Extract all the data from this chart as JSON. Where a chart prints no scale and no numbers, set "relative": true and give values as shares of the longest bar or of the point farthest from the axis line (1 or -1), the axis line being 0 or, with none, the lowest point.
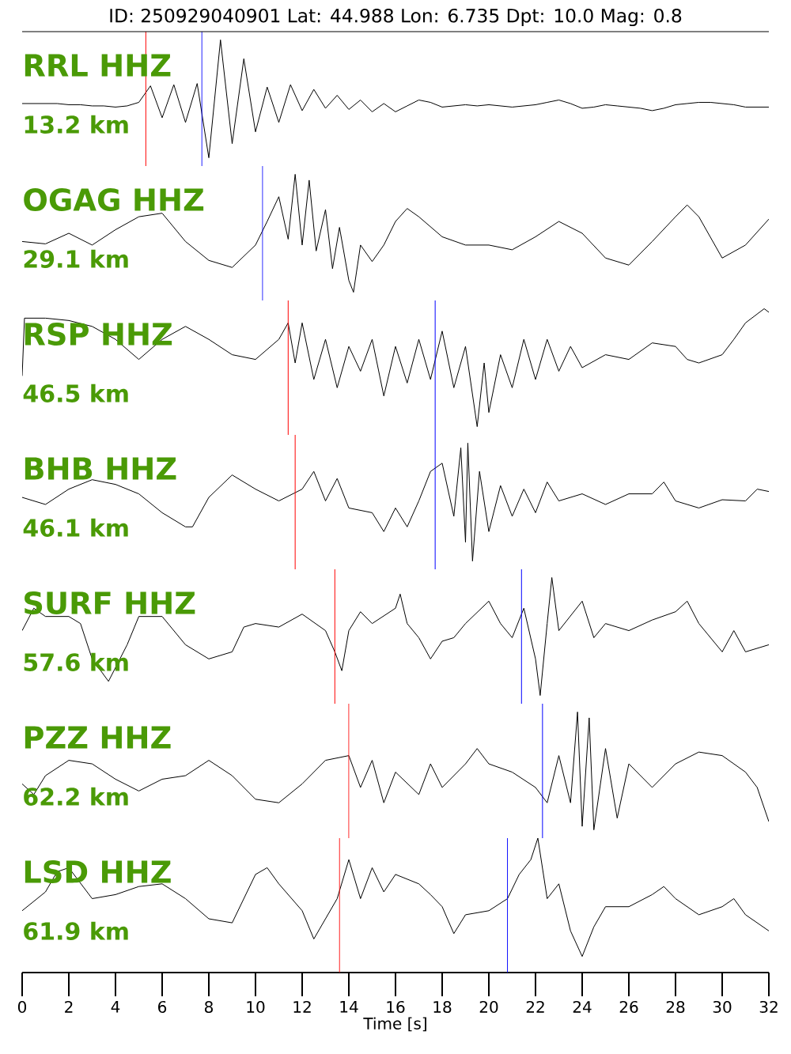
{
  "chart_data": [
    {
      "type": "line",
      "title": "RRL HHZ",
      "subtitle": "13.2 km",
      "relative": true,
      "color": "#000000",
      "xlim": [
        0,
        32
      ],
      "tick_labels": false,
      "annotations": [
        "ID: 250929040901 Lat:  44.988 Lon:   6.735 Dpt:    10.0 Mag:   0.8"
      ],
      "x": [
        0,
        0.5,
        1,
        1.5,
        2,
        2.5,
        3,
        3.5,
        4,
        4.5,
        5,
        5.5,
        6,
        6.5,
        7,
        7.5,
        8,
        8.5,
        9,
        9.5,
        10,
        10.5,
        11,
        11.5,
        12,
        12.5,
        13,
        13.5,
        14,
        14.5,
        15,
        15.5,
        16,
        16.5,
        17,
        17.5,
        18,
        18.5,
        19,
        19.5,
        20,
        20.5,
        21,
        21.5,
        22,
        22.5,
        23,
        23.5,
        24,
        24.5,
        25,
        25.5,
        26,
        26.5,
        27,
        27.5,
        28,
        28.5,
        29,
        29.5,
        30,
        30.5,
        31,
        31.5,
        32
      ],
      "values": [
        0.46,
        0.46,
        0.46,
        0.46,
        0.45,
        0.45,
        0.44,
        0.44,
        0.43,
        0.44,
        0.47,
        0.61,
        0.34,
        0.62,
        0.3,
        0.63,
        0.0,
        1.0,
        0.12,
        0.84,
        0.22,
        0.6,
        0.3,
        0.62,
        0.4,
        0.58,
        0.42,
        0.53,
        0.41,
        0.49,
        0.39,
        0.46,
        0.39,
        0.44,
        0.49,
        0.47,
        0.43,
        0.44,
        0.45,
        0.44,
        0.45,
        0.44,
        0.43,
        0.44,
        0.45,
        0.47,
        0.49,
        0.46,
        0.42,
        0.43,
        0.45,
        0.44,
        0.43,
        0.42,
        0.4,
        0.42,
        0.45,
        0.46,
        0.47,
        0.47,
        0.46,
        0.45,
        0.43,
        0.43,
        0.43
      ],
      "ref_lines": [
        {
          "axis": "x",
          "value": 5.3,
          "color": "#ff0000"
        },
        {
          "axis": "x",
          "value": 7.7,
          "color": "#0000ff"
        }
      ]
    },
    {
      "type": "line",
      "title": "OGAG HHZ",
      "subtitle": "29.1 km",
      "relative": true,
      "color": "#000000",
      "xlim": [
        0,
        32
      ],
      "tick_labels": false,
      "x": [
        0,
        1,
        2,
        3,
        4,
        5,
        6,
        7,
        8,
        9,
        10,
        10.5,
        11,
        11.4,
        11.7,
        12,
        12.3,
        12.6,
        13,
        13.3,
        13.6,
        14,
        14.2,
        14.5,
        15,
        15.5,
        16,
        16.5,
        17,
        18,
        19,
        20,
        21,
        22,
        23,
        24,
        25,
        26,
        27,
        28,
        28.5,
        29,
        30,
        31,
        32
      ],
      "values": [
        0.43,
        0.41,
        0.5,
        0.4,
        0.53,
        0.64,
        0.67,
        0.43,
        0.27,
        0.21,
        0.4,
        0.6,
        0.81,
        0.45,
        1.0,
        0.4,
        0.95,
        0.35,
        0.7,
        0.2,
        0.55,
        0.1,
        0.0,
        0.4,
        0.26,
        0.4,
        0.6,
        0.71,
        0.64,
        0.47,
        0.4,
        0.4,
        0.36,
        0.47,
        0.6,
        0.5,
        0.29,
        0.23,
        0.43,
        0.64,
        0.74,
        0.64,
        0.29,
        0.4,
        0.62
      ],
      "ref_lines": [
        {
          "axis": "x",
          "value": 10.3,
          "color": "#0000ff"
        }
      ]
    },
    {
      "type": "line",
      "title": "RSP HHZ",
      "subtitle": "46.5 km",
      "relative": true,
      "color": "#000000",
      "xlim": [
        0,
        32
      ],
      "tick_labels": false,
      "x": [
        0,
        0.1,
        1,
        2,
        3,
        4,
        5,
        6,
        7,
        8,
        9,
        10,
        11,
        11.4,
        11.7,
        12,
        12.5,
        13,
        13.5,
        14,
        14.5,
        15,
        15.5,
        16,
        16.5,
        17,
        17.5,
        18,
        18.5,
        19,
        19.5,
        19.8,
        20,
        20.5,
        21,
        21.5,
        22,
        22.5,
        23,
        23.5,
        24,
        25,
        26,
        27,
        28,
        28.5,
        29,
        30,
        30.5,
        31,
        31.8,
        32
      ],
      "values": [
        0.43,
        0.92,
        0.92,
        0.9,
        0.85,
        0.74,
        0.57,
        0.74,
        0.85,
        0.74,
        0.61,
        0.57,
        0.74,
        0.88,
        0.54,
        0.88,
        0.4,
        0.74,
        0.33,
        0.68,
        0.47,
        0.74,
        0.26,
        0.68,
        0.37,
        0.74,
        0.4,
        0.81,
        0.33,
        0.68,
        0.0,
        0.54,
        0.12,
        0.61,
        0.33,
        0.74,
        0.4,
        0.74,
        0.47,
        0.68,
        0.5,
        0.61,
        0.57,
        0.71,
        0.68,
        0.57,
        0.54,
        0.61,
        0.74,
        0.88,
        1.0,
        0.97
      ],
      "ref_lines": [
        {
          "axis": "x",
          "value": 11.4,
          "color": "#ff0000"
        },
        {
          "axis": "x",
          "value": 17.7,
          "color": "#0000ff"
        }
      ]
    },
    {
      "type": "line",
      "title": "BHB HHZ",
      "subtitle": "46.1 km",
      "relative": true,
      "color": "#000000",
      "xlim": [
        0,
        32
      ],
      "tick_labels": false,
      "x": [
        0,
        1,
        2,
        3,
        4,
        5,
        6,
        7,
        7.3,
        8,
        9,
        10,
        11,
        12,
        12.5,
        13,
        13.5,
        14,
        15,
        15.5,
        16,
        16.5,
        17,
        17.5,
        18,
        18.5,
        18.8,
        19,
        19.1,
        19.3,
        19.6,
        20,
        20.5,
        21,
        21.5,
        22,
        22.5,
        23,
        24,
        25,
        26,
        27,
        27.5,
        28,
        29,
        30,
        31,
        31.5,
        32
      ],
      "values": [
        0.54,
        0.48,
        0.61,
        0.69,
        0.65,
        0.57,
        0.41,
        0.29,
        0.29,
        0.54,
        0.73,
        0.61,
        0.51,
        0.61,
        0.76,
        0.51,
        0.7,
        0.45,
        0.41,
        0.25,
        0.45,
        0.29,
        0.51,
        0.76,
        0.83,
        0.38,
        0.96,
        0.16,
        1.0,
        0.0,
        0.76,
        0.25,
        0.64,
        0.38,
        0.61,
        0.41,
        0.67,
        0.51,
        0.57,
        0.48,
        0.57,
        0.57,
        0.67,
        0.51,
        0.45,
        0.52,
        0.51,
        0.61,
        0.59
      ],
      "ref_lines": [
        {
          "axis": "x",
          "value": 11.7,
          "color": "#ff0000"
        },
        {
          "axis": "x",
          "value": 17.7,
          "color": "#0000ff"
        }
      ]
    },
    {
      "type": "line",
      "title": "SURF HHZ",
      "subtitle": "57.6 km",
      "relative": true,
      "color": "#000000",
      "xlim": [
        0,
        32
      ],
      "tick_labels": false,
      "x": [
        0,
        0.5,
        1,
        2,
        2.5,
        3,
        3.7,
        4.5,
        5,
        6,
        7,
        8,
        9,
        9.5,
        10,
        11,
        12,
        13,
        13.4,
        13.7,
        14,
        14.5,
        15,
        16,
        16.2,
        16.5,
        17,
        17.5,
        18,
        18.5,
        19,
        20,
        20.5,
        21,
        21.5,
        22,
        22.2,
        22.5,
        22.7,
        23,
        24,
        24.5,
        25,
        26,
        27,
        28,
        28.5,
        29,
        30,
        30.5,
        31,
        32
      ],
      "values": [
        0.55,
        0.74,
        0.67,
        0.67,
        0.61,
        0.31,
        0.12,
        0.43,
        0.67,
        0.67,
        0.43,
        0.31,
        0.37,
        0.58,
        0.61,
        0.58,
        0.69,
        0.55,
        0.37,
        0.21,
        0.55,
        0.71,
        0.61,
        0.74,
        0.86,
        0.61,
        0.49,
        0.31,
        0.46,
        0.49,
        0.61,
        0.8,
        0.61,
        0.49,
        0.74,
        0.31,
        0.0,
        0.61,
        1.0,
        0.55,
        0.8,
        0.49,
        0.61,
        0.55,
        0.64,
        0.71,
        0.8,
        0.61,
        0.37,
        0.55,
        0.37,
        0.43
      ],
      "ref_lines": [
        {
          "axis": "x",
          "value": 13.4,
          "color": "#ff0000"
        },
        {
          "axis": "x",
          "value": 21.4,
          "color": "#0000ff"
        }
      ]
    },
    {
      "type": "line",
      "title": "PZZ HHZ",
      "subtitle": "62.2 km",
      "relative": true,
      "color": "#000000",
      "xlim": [
        0,
        32
      ],
      "tick_labels": false,
      "x": [
        0,
        0.5,
        1,
        2,
        3,
        4,
        5,
        6,
        7,
        8,
        9,
        10,
        11,
        12,
        13,
        14,
        14.5,
        15,
        15.5,
        16,
        17,
        17.5,
        18,
        19,
        19.5,
        20,
        21,
        22,
        22.5,
        23,
        23.5,
        23.8,
        24,
        24.3,
        24.5,
        25,
        25.5,
        26,
        27,
        28,
        29,
        30,
        31,
        31.5,
        32
      ],
      "values": [
        0.39,
        0.3,
        0.46,
        0.59,
        0.56,
        0.43,
        0.33,
        0.43,
        0.46,
        0.59,
        0.46,
        0.26,
        0.23,
        0.39,
        0.59,
        0.63,
        0.36,
        0.59,
        0.23,
        0.49,
        0.3,
        0.56,
        0.36,
        0.56,
        0.69,
        0.56,
        0.49,
        0.36,
        0.23,
        0.63,
        0.23,
        1.0,
        0.03,
        0.95,
        0.0,
        0.69,
        0.1,
        0.56,
        0.36,
        0.56,
        0.66,
        0.63,
        0.49,
        0.36,
        0.07
      ],
      "ref_lines": [
        {
          "axis": "x",
          "value": 14.0,
          "color": "#ff0000"
        },
        {
          "axis": "x",
          "value": 22.3,
          "color": "#0000ff"
        }
      ]
    },
    {
      "type": "line",
      "title": "LSD HHZ",
      "subtitle": "61.9 km",
      "relative": true,
      "color": "#000000",
      "xlim": [
        0,
        32
      ],
      "tick_labels": "x",
      "xlabel": "Time [s]",
      "xticks": [
        {
          "value": 0,
          "label": "0"
        },
        {
          "value": 2,
          "label": "2"
        },
        {
          "value": 4,
          "label": "4"
        },
        {
          "value": 6,
          "label": "6"
        },
        {
          "value": 8,
          "label": "8"
        },
        {
          "value": 10,
          "label": "10"
        },
        {
          "value": 12,
          "label": "12"
        },
        {
          "value": 14,
          "label": "14"
        },
        {
          "value": 16,
          "label": "16"
        },
        {
          "value": 18,
          "label": "18"
        },
        {
          "value": 20,
          "label": "20"
        },
        {
          "value": 22,
          "label": "22"
        },
        {
          "value": 24,
          "label": "24"
        },
        {
          "value": 26,
          "label": "26"
        },
        {
          "value": 28,
          "label": "28"
        },
        {
          "value": 30,
          "label": "30"
        },
        {
          "value": 32,
          "label": "32"
        }
      ],
      "x": [
        0,
        1,
        1.5,
        2,
        3,
        4,
        5,
        6,
        7,
        8,
        9,
        10,
        10.5,
        11,
        12,
        12.5,
        13,
        13.5,
        14,
        14.5,
        15,
        15.5,
        16,
        17,
        17.5,
        18,
        18.5,
        19,
        20,
        20.8,
        21.3,
        21.8,
        22.1,
        22.5,
        23,
        23.5,
        24,
        24.5,
        25,
        26,
        27,
        27.5,
        28,
        29,
        30,
        30.5,
        31,
        32
      ],
      "values": [
        0.46,
        0.6,
        0.75,
        0.78,
        0.55,
        0.58,
        0.64,
        0.66,
        0.55,
        0.4,
        0.37,
        0.73,
        0.78,
        0.66,
        0.46,
        0.25,
        0.4,
        0.55,
        0.84,
        0.55,
        0.78,
        0.6,
        0.73,
        0.66,
        0.58,
        0.49,
        0.29,
        0.43,
        0.46,
        0.55,
        0.73,
        0.84,
        1.0,
        0.55,
        0.66,
        0.31,
        0.12,
        0.34,
        0.49,
        0.49,
        0.58,
        0.64,
        0.55,
        0.43,
        0.49,
        0.55,
        0.43,
        0.31
      ],
      "ref_lines": [
        {
          "axis": "x",
          "value": 13.6,
          "color": "#ff0000"
        },
        {
          "axis": "x",
          "value": 20.8,
          "color": "#0000ff"
        }
      ]
    }
  ]
}
